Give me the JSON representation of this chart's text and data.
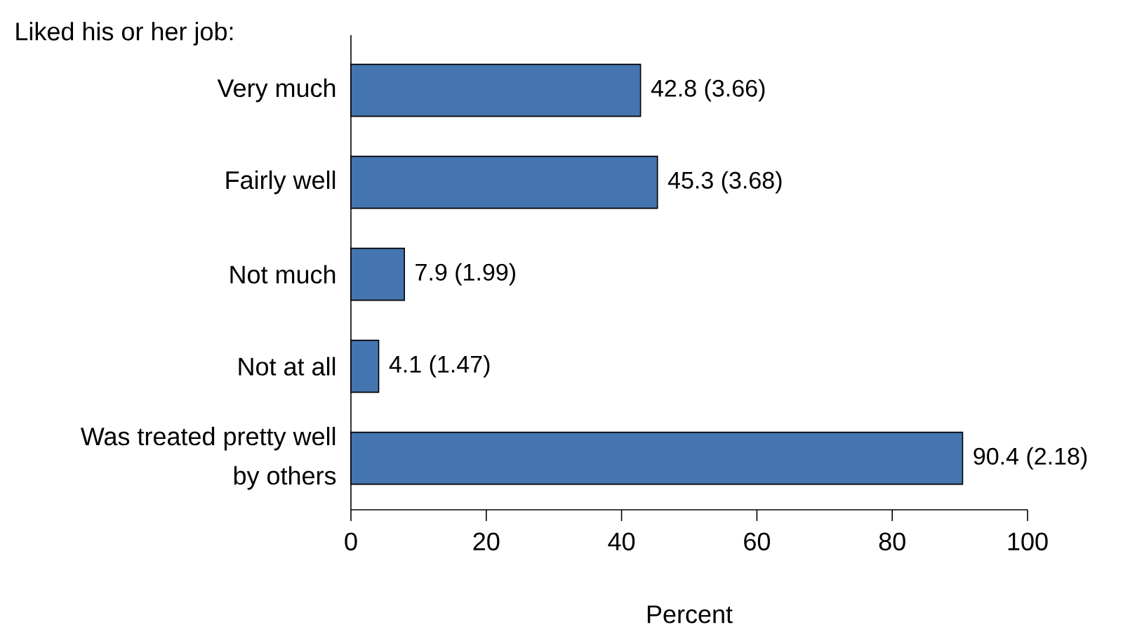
{
  "chart_data": {
    "type": "bar",
    "orientation": "horizontal",
    "categories": [
      "Very much",
      "Fairly well",
      "Not much",
      "Not at all",
      "Was treated pretty well by others"
    ],
    "values": [
      42.8,
      45.3,
      7.9,
      4.1,
      90.4
    ],
    "value_labels": [
      "42.8 (3.66)",
      "45.3 (3.68)",
      "7.9 (1.99)",
      "4.1 (1.47)",
      "90.4 (2.18)"
    ],
    "color": "#4575b0",
    "xlim": [
      0,
      100
    ],
    "xticks": [
      0,
      20,
      40,
      60,
      80,
      100
    ],
    "xlabel": "Percent",
    "annotations": [
      "Liked his or her job:"
    ]
  }
}
